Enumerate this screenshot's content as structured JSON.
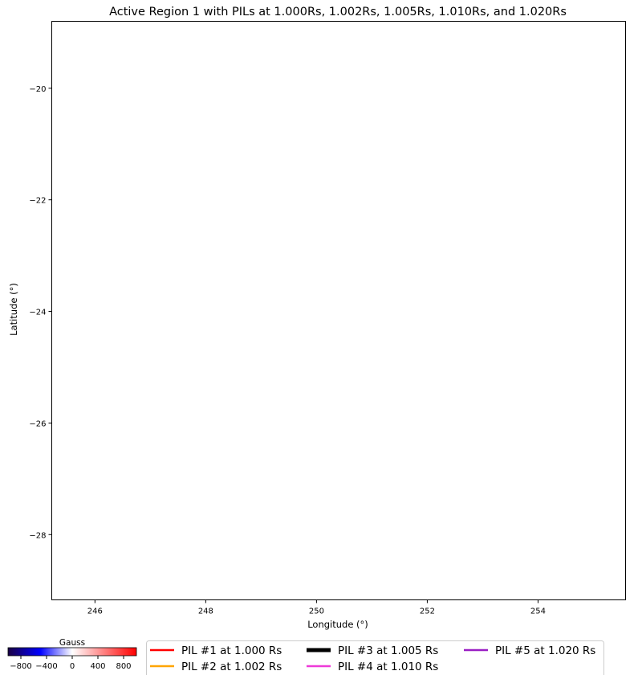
{
  "chart_data": {
    "type": "line",
    "title": "Active Region 1 with PILs at 1.000Rs, 1.002Rs, 1.005Rs, 1.010Rs, and 1.020Rs",
    "xlabel": "Longitude (°)",
    "ylabel": "Latitude (°)",
    "xlim": [
      245.22,
      255.58
    ],
    "ylim": [
      -29.17,
      -18.8
    ],
    "xticks": [
      246,
      248,
      250,
      252,
      254
    ],
    "yticks": [
      -20,
      -22,
      -24,
      -26,
      -28
    ],
    "grid": false,
    "series": [
      {
        "name": "PIL #1 at 1.000 Rs",
        "color": "#ff0000",
        "points": []
      },
      {
        "name": "PIL #2 at 1.002 Rs",
        "color": "#ffa500",
        "points": []
      },
      {
        "name": "PIL #3 at 1.005 Rs",
        "color": "#000000",
        "points": []
      },
      {
        "name": "PIL #4 at 1.010 Rs",
        "color": "#ee3ad8",
        "points": []
      },
      {
        "name": "PIL #5 at 1.020 Rs",
        "color": "#9a1fc4",
        "points": []
      }
    ],
    "legend_position": "bottom",
    "colorbar": {
      "label": "Gauss",
      "range": [
        -1000,
        1000
      ],
      "ticks": [
        -800,
        -400,
        0,
        400,
        800
      ],
      "colormap": [
        "#1a0044",
        "#0000ff",
        "#ffffff",
        "#ff0000"
      ]
    }
  }
}
